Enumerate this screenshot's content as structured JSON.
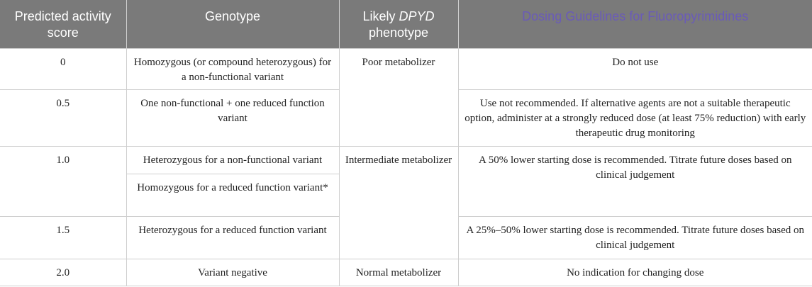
{
  "header": {
    "score": "Predicted activity score",
    "genotype": "Genotype",
    "phenotype_prefix": "Likely ",
    "phenotype_gene": "DPYD",
    "phenotype_suffix": " phenotype",
    "dosing": "Dosing Guidelines for Fluoropyrimidines"
  },
  "rows": [
    {
      "score": "0",
      "genotype": "Homozygous (or compound heterozygous) for a non-functional variant",
      "phenotype": "Poor metabolizer",
      "dosing": "Do not use"
    },
    {
      "score": "0.5",
      "genotype": "One non-functional + one reduced function variant",
      "dosing": "Use not recommended. If alternative agents are not a suitable therapeutic option, administer at a strongly reduced dose (at least 75% reduction) with early therapeutic drug monitoring"
    },
    {
      "score": "1.0",
      "genotype": "Heterozygous for a non-functional variant",
      "phenotype": "Intermediate metabolizer",
      "dosing": "A 50% lower starting dose is recommended. Titrate future doses based on clinical judgement"
    },
    {
      "genotype": "Homozygous for a reduced function variant*"
    },
    {
      "score": "1.5",
      "genotype": "Heterozygous for a reduced function variant",
      "dosing": "A 25%–50% lower starting dose is recommended. Titrate future doses based on clinical judgement"
    },
    {
      "score": "2.0",
      "genotype": "Variant negative",
      "phenotype": "Normal metabolizer",
      "dosing": "No indication for changing dose"
    }
  ]
}
